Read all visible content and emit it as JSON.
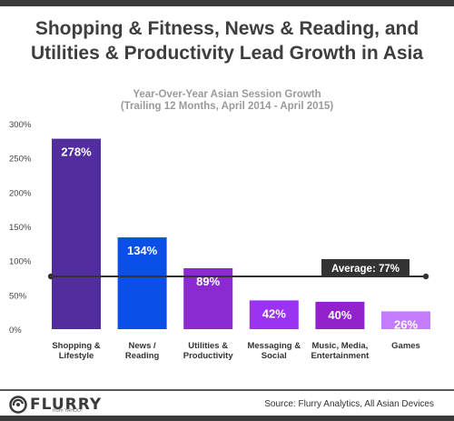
{
  "title_line1": "Shopping & Fitness, News & Reading, and",
  "title_line2": "Utilities & Productivity Lead Growth in Asia",
  "chart_data": {
    "type": "bar",
    "title": "Year-Over-Year Asian Session Growth",
    "subtitle": "(Trailing 12 Months, April 2014 - April 2015)",
    "xlabel": "",
    "ylabel": "",
    "categories": [
      [
        "Shopping &",
        "Lifestyle"
      ],
      [
        "News /",
        "Reading"
      ],
      [
        "Utilities &",
        "Productivity"
      ],
      [
        "Messaging &",
        "Social"
      ],
      [
        "Music, Media,",
        "Entertainment"
      ],
      [
        "Games"
      ]
    ],
    "values": [
      278,
      134,
      89,
      42,
      40,
      26
    ],
    "value_labels": [
      "278%",
      "134%",
      "89%",
      "42%",
      "40%",
      "26%"
    ],
    "colors": [
      "#512d9e",
      "#0a4fe8",
      "#8b2ad0",
      "#9b33f4",
      "#9222cc",
      "#c37cfd"
    ],
    "ylim": [
      0,
      300
    ],
    "yticks": [
      0,
      50,
      100,
      150,
      200,
      250,
      300
    ],
    "ytick_labels": [
      "0%",
      "50%",
      "100%",
      "150%",
      "200%",
      "250%",
      "300%"
    ],
    "grid": false,
    "average": {
      "value": 77,
      "label": "Average: 77%"
    }
  },
  "footer": {
    "logo_text": "FLURRY",
    "logo_sub": "from YAHOO!",
    "source": "Source: Flurry Analytics, All Asian Devices"
  }
}
